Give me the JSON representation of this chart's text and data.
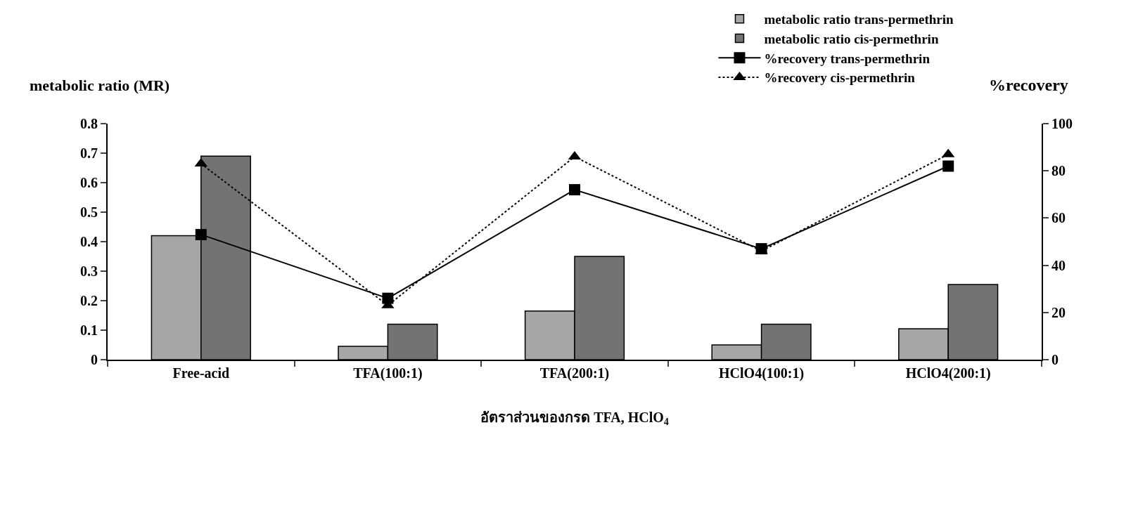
{
  "chart_data": {
    "type": "bar",
    "categories": [
      "Free-acid",
      "TFA(100:1)",
      "TFA(200:1)",
      "HClO4(100:1)",
      "HClO4(200:1)"
    ],
    "xlabel": "อัตราส่วนของกรด TFA, HClO$_{4}$",
    "ylabel": "metabolic ratio (MR)",
    "y2label": "%recovery",
    "ylim": [
      0,
      0.8
    ],
    "yticks": [
      0,
      0.1,
      0.2,
      0.3,
      0.4,
      0.5,
      0.6,
      0.7,
      0.8
    ],
    "y2lim": [
      0,
      100
    ],
    "y2ticks": [
      0,
      20,
      40,
      60,
      80,
      100
    ],
    "grid": false,
    "legend": "top right",
    "series": [
      {
        "name": "metabolic ratio trans-permethrin",
        "color": "#a6a6a6",
        "values": [
          0.42,
          0.045,
          0.165,
          0.05,
          0.105
        ]
      },
      {
        "name": "metabolic ratio cis-permethrin",
        "color": "#737373",
        "values": [
          0.69,
          0.12,
          0.35,
          0.12,
          0.255
        ]
      },
      {
        "name": "%recovery trans-permethrin",
        "type": "line",
        "axis": "y2",
        "color": "#000000",
        "marker": "square",
        "line_style": "solid",
        "values": [
          53,
          26,
          72,
          47,
          82
        ]
      },
      {
        "name": "%recovery cis-permethrin",
        "type": "line",
        "axis": "y2",
        "color": "#000000",
        "marker": "triangle",
        "line_style": "dotted",
        "values": [
          83,
          23,
          86,
          46,
          87
        ]
      }
    ]
  }
}
